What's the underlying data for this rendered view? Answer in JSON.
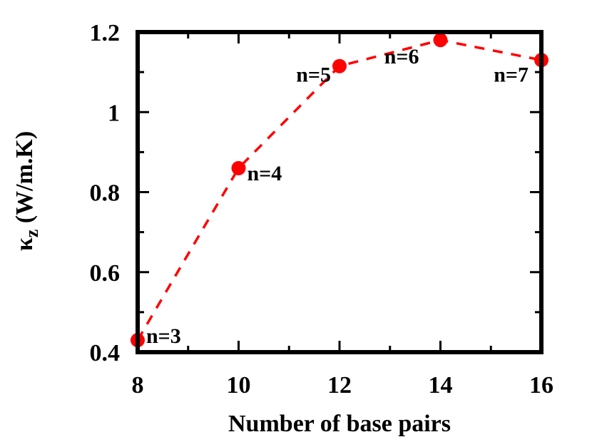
{
  "chart_data": {
    "type": "line",
    "title": "",
    "xlabel": "Number of base pairs",
    "ylabel": "κz (W/m.K)",
    "ylabel_parts": {
      "symbol": "κ",
      "subscript": "z",
      "units": " (W/m.K)"
    },
    "xlim": [
      8,
      16
    ],
    "ylim": [
      0.4,
      1.2
    ],
    "x_ticks": [
      8,
      10,
      12,
      14,
      16
    ],
    "x_tick_labels": [
      "8",
      "10",
      "12",
      "14",
      "16"
    ],
    "x_minor_ticks": [
      9,
      11,
      13,
      15
    ],
    "y_ticks": [
      0.4,
      0.6,
      0.8,
      1.0,
      1.2
    ],
    "y_tick_labels": [
      "0.4",
      "0.6",
      "0.8",
      "1",
      "1.2"
    ],
    "y_minor_ticks": [
      0.5,
      0.7,
      0.9,
      1.1
    ],
    "grid": false,
    "legend": null,
    "series": [
      {
        "name": "κz",
        "color": "#ff0000",
        "line_style": "dashed",
        "marker": "circle",
        "x": [
          8,
          10,
          12,
          14,
          16
        ],
        "y": [
          0.43,
          0.86,
          1.115,
          1.18,
          1.13
        ]
      }
    ],
    "annotations": [
      {
        "text": "n=3",
        "x": 8,
        "y": 0.43
      },
      {
        "text": "n=4",
        "x": 10,
        "y": 0.86
      },
      {
        "text": "n=5",
        "x": 12,
        "y": 1.115
      },
      {
        "text": "n=6",
        "x": 14,
        "y": 1.18
      },
      {
        "text": "n=7",
        "x": 16,
        "y": 1.13
      }
    ]
  }
}
